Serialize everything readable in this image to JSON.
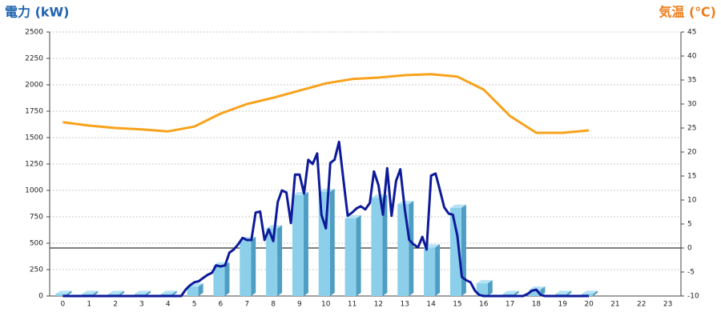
{
  "chart_data": {
    "type": "combo",
    "y_title": "電力 (kW)",
    "y2_title": "気温 (℃)",
    "y_title_color": "#1f63b0",
    "y2_title_color": "#ee7d1a",
    "categories": [
      "0",
      "1",
      "2",
      "3",
      "4",
      "5",
      "6",
      "7",
      "8",
      "9",
      "10",
      "11",
      "12",
      "13",
      "14",
      "15",
      "16",
      "17",
      "18",
      "19",
      "20",
      "21",
      "22",
      "23"
    ],
    "ylim": [
      0,
      2500
    ],
    "yticks": [
      0,
      250,
      500,
      750,
      1000,
      1250,
      1500,
      1750,
      2000,
      2250,
      2500
    ],
    "y2lim": [
      -10,
      45
    ],
    "y2ticks": [
      -10,
      -5,
      0,
      5,
      10,
      15,
      20,
      25,
      30,
      35,
      40,
      45
    ],
    "y2_reference_line": 0,
    "grid": true,
    "series": [
      {
        "type": "bar3d",
        "color": "#8ccfeb",
        "side_color": "#4e9dc2",
        "top_color": "#b6e2f5",
        "values": [
          20,
          20,
          20,
          20,
          20,
          90,
          290,
          530,
          640,
          955,
          985,
          735,
          930,
          870,
          460,
          835,
          120,
          20,
          60,
          20,
          20,
          null,
          null,
          null
        ]
      },
      {
        "type": "line",
        "color": "#0d1a99",
        "x": [
          0,
          4.5,
          4.67,
          4.83,
          5,
          5.17,
          5.33,
          5.5,
          5.67,
          5.83,
          6,
          6.17,
          6.33,
          6.5,
          6.67,
          6.83,
          7,
          7.17,
          7.33,
          7.5,
          7.67,
          7.83,
          8,
          8.17,
          8.33,
          8.5,
          8.67,
          8.83,
          9,
          9.17,
          9.33,
          9.5,
          9.67,
          9.83,
          10,
          10.17,
          10.33,
          10.5,
          10.67,
          10.83,
          11,
          11.17,
          11.33,
          11.5,
          11.67,
          11.83,
          12,
          12.17,
          12.33,
          12.5,
          12.67,
          12.83,
          13,
          13.17,
          13.33,
          13.5,
          13.67,
          13.83,
          14,
          14.17,
          14.33,
          14.5,
          14.67,
          14.83,
          15,
          15.17,
          15.33,
          15.5,
          15.67,
          15.83,
          16,
          17.5,
          17.67,
          17.83,
          18,
          18.17,
          18.33,
          20
        ],
        "values": [
          0,
          0,
          60,
          100,
          130,
          140,
          170,
          200,
          220,
          290,
          280,
          290,
          410,
          440,
          490,
          550,
          530,
          530,
          790,
          800,
          530,
          630,
          520,
          890,
          1000,
          980,
          690,
          1150,
          1150,
          970,
          1290,
          1250,
          1350,
          770,
          640,
          1260,
          1290,
          1460,
          1100,
          760,
          790,
          830,
          850,
          820,
          880,
          1180,
          1050,
          770,
          1210,
          760,
          1090,
          1200,
          820,
          530,
          490,
          460,
          560,
          440,
          1140,
          1160,
          1010,
          840,
          780,
          770,
          570,
          180,
          150,
          130,
          50,
          10,
          0,
          0,
          20,
          50,
          60,
          10,
          0,
          0
        ]
      },
      {
        "type": "line",
        "color": "#f7a21b",
        "axis": "y2",
        "values": [
          26.2,
          25.5,
          25,
          24.7,
          24.3,
          25.3,
          28,
          30,
          31.3,
          32.8,
          34.3,
          35.2,
          35.5,
          36,
          36.2,
          35.7,
          33,
          27.5,
          24,
          24,
          24.5,
          null,
          null,
          null
        ]
      }
    ]
  }
}
